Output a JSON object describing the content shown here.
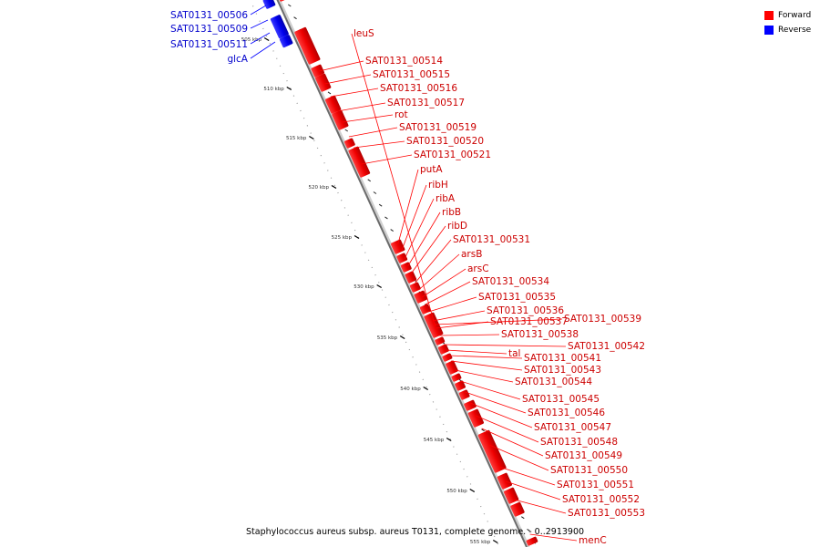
{
  "title": "Staphylococcus aureus subsp. aureus T0131, complete genome. - 0..2913900",
  "legend": [
    {
      "name": "Forward",
      "color": "#ff0000"
    },
    {
      "name": "Reverse",
      "color": "#0000ff"
    }
  ],
  "ticks": [
    "505 kbp",
    "510 kbp",
    "515 kbp",
    "520 kbp",
    "525 kbp",
    "530 kbp",
    "535 kbp",
    "540 kbp",
    "545 kbp",
    "550 kbp",
    "555 kbp"
  ],
  "reverse_genes": [
    "SAT0131_00506",
    "SAT0131_00509",
    "SAT0131_00511",
    "glcA"
  ],
  "forward_genes": [
    "leuS",
    "SAT0131_00514",
    "SAT0131_00515",
    "SAT0131_00516",
    "SAT0131_00517",
    "rot",
    "SAT0131_00519",
    "SAT0131_00520",
    "SAT0131_00521",
    "putA",
    "ribH",
    "ribA",
    "ribB",
    "ribD",
    "SAT0131_00531",
    "arsB",
    "arsC",
    "SAT0131_00534",
    "SAT0131_00535",
    "SAT0131_00536",
    "SAT0131_00537",
    "SAT0131_00539",
    "SAT0131_00538",
    "SAT0131_00542",
    "tal",
    "SAT0131_00541",
    "SAT0131_00543",
    "SAT0131_00544",
    "SAT0131_00545",
    "SAT0131_00546",
    "SAT0131_00547",
    "SAT0131_00548",
    "SAT0131_00549",
    "SAT0131_00550",
    "SAT0131_00551",
    "SAT0131_00552",
    "SAT0131_00553",
    "menC"
  ]
}
